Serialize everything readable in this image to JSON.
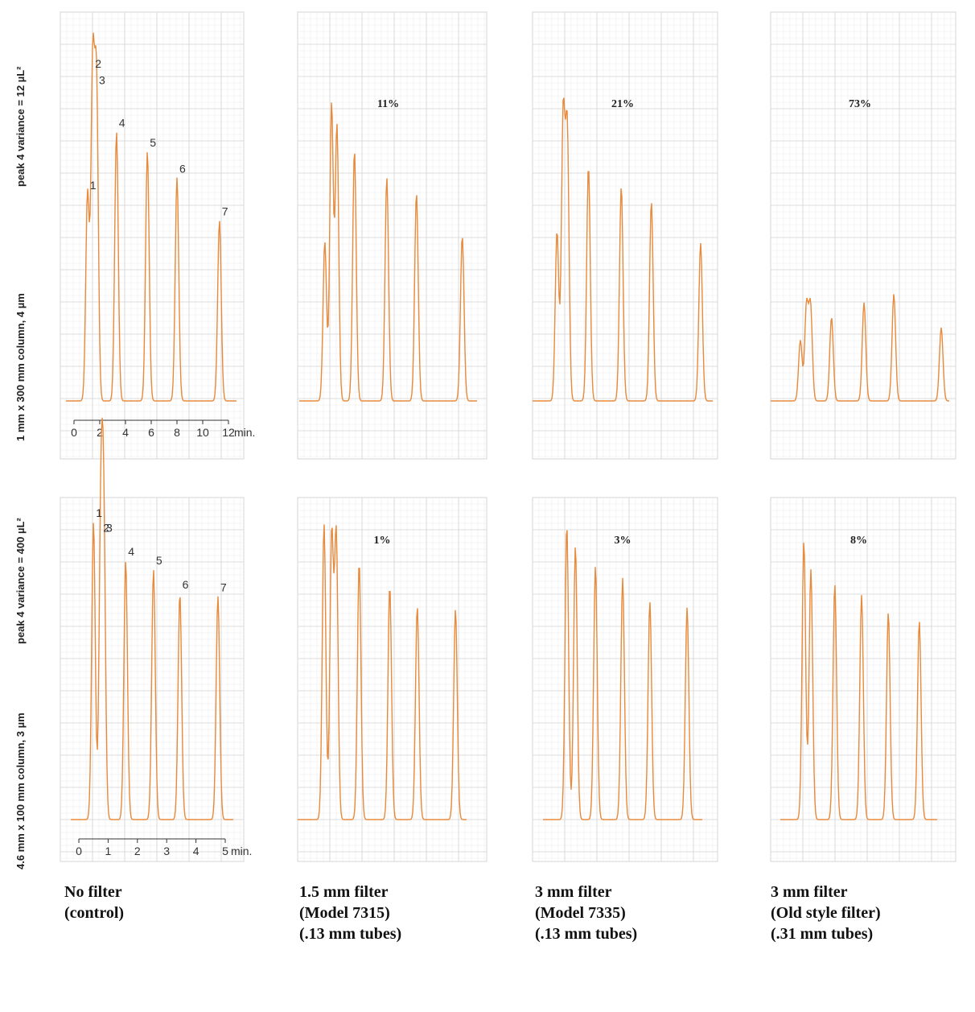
{
  "row_labels": [
    {
      "line1": "peak 4 variance = 12 µL²",
      "line2": "1 mm x 300 mm column, 4 µm"
    },
    {
      "line1": "peak 4 variance = 400 µL²",
      "line2": "4.6 mm x 100 mm column, 3 µm"
    }
  ],
  "column_captions": [
    [
      "No filter",
      "(control)"
    ],
    [
      "1.5 mm filter",
      "(Model 7315)",
      "(.13 mm tubes)"
    ],
    [
      "3 mm filter",
      "(Model 7335)",
      "(.13 mm tubes)"
    ],
    [
      "3 mm filter",
      "(Old style filter)",
      "(.31 mm tubes)"
    ]
  ],
  "colors": {
    "trace": "#e88a3c",
    "grid_minor": "#ececec",
    "grid_major": "#d4d4d4",
    "text": "#111111"
  },
  "chart_data": [
    {
      "type": "line",
      "title": "",
      "xlabel": "min.",
      "x_ticks": [
        0,
        2,
        4,
        6,
        8,
        10,
        12
      ],
      "xlim": [
        0,
        12
      ],
      "variance_increase": "",
      "peak_labels": [
        "1",
        "2",
        "3",
        "4",
        "5",
        "6",
        "7"
      ],
      "peaks": [
        {
          "x": 1.05,
          "height": 0.63
        },
        {
          "x": 1.45,
          "height": 1.0
        },
        {
          "x": 1.75,
          "height": 0.95
        },
        {
          "x": 3.3,
          "height": 0.82
        },
        {
          "x": 5.7,
          "height": 0.76
        },
        {
          "x": 8.0,
          "height": 0.68
        },
        {
          "x": 11.3,
          "height": 0.55
        }
      ]
    },
    {
      "type": "line",
      "title": "",
      "xlim": [
        0,
        12
      ],
      "variance_increase": "11%",
      "peaks": [
        {
          "x": 1.3,
          "height": 0.52
        },
        {
          "x": 1.8,
          "height": 0.97
        },
        {
          "x": 2.2,
          "height": 0.9
        },
        {
          "x": 3.5,
          "height": 0.82
        },
        {
          "x": 5.9,
          "height": 0.73
        },
        {
          "x": 8.1,
          "height": 0.68
        },
        {
          "x": 11.5,
          "height": 0.54
        }
      ]
    },
    {
      "type": "line",
      "title": "",
      "xlim": [
        0,
        12
      ],
      "variance_increase": "21%",
      "peaks": [
        {
          "x": 1.2,
          "height": 0.57
        },
        {
          "x": 1.65,
          "height": 0.95
        },
        {
          "x": 1.95,
          "height": 0.9
        },
        {
          "x": 3.5,
          "height": 0.79
        },
        {
          "x": 5.9,
          "height": 0.72
        },
        {
          "x": 8.1,
          "height": 0.67
        },
        {
          "x": 11.7,
          "height": 0.53
        }
      ]
    },
    {
      "type": "line",
      "title": "",
      "xlim": [
        0,
        12
      ],
      "variance_increase": "73%",
      "peaks": [
        {
          "x": 1.6,
          "height": 0.29
        },
        {
          "x": 2.05,
          "height": 0.45
        },
        {
          "x": 2.35,
          "height": 0.45
        },
        {
          "x": 3.9,
          "height": 0.4
        },
        {
          "x": 6.3,
          "height": 0.47
        },
        {
          "x": 8.5,
          "height": 0.51
        },
        {
          "x": 12.0,
          "height": 0.35
        }
      ]
    },
    {
      "type": "line",
      "title": "",
      "xlabel": "min.",
      "x_ticks": [
        0,
        1,
        2,
        3,
        4,
        5
      ],
      "xlim": [
        0,
        5
      ],
      "variance_increase": "",
      "peak_labels": [
        "1",
        "2",
        "3",
        "4",
        "5",
        "6",
        "7"
      ],
      "peaks": [
        {
          "x": 0.5,
          "height": 1.0
        },
        {
          "x": 0.75,
          "height": 0.95
        },
        {
          "x": 0.85,
          "height": 0.95
        },
        {
          "x": 1.6,
          "height": 0.87
        },
        {
          "x": 2.55,
          "height": 0.84
        },
        {
          "x": 3.45,
          "height": 0.76
        },
        {
          "x": 4.75,
          "height": 0.75
        }
      ]
    },
    {
      "type": "line",
      "title": "",
      "xlim": [
        0,
        5
      ],
      "variance_increase": "1%",
      "peaks": [
        {
          "x": 0.6,
          "height": 1.0
        },
        {
          "x": 0.85,
          "height": 0.96
        },
        {
          "x": 1.0,
          "height": 0.96
        },
        {
          "x": 1.75,
          "height": 0.87
        },
        {
          "x": 2.75,
          "height": 0.79
        },
        {
          "x": 3.65,
          "height": 0.72
        },
        {
          "x": 4.9,
          "height": 0.71
        }
      ]
    },
    {
      "type": "line",
      "title": "",
      "xlim": [
        0,
        5
      ],
      "variance_increase": "3%",
      "peaks": [
        {
          "x": 0.55,
          "height": 1.0
        },
        {
          "x": 0.85,
          "height": 0.93
        },
        {
          "x": 1.55,
          "height": 0.86
        },
        {
          "x": 2.5,
          "height": 0.82
        },
        {
          "x": 3.45,
          "height": 0.74
        },
        {
          "x": 4.75,
          "height": 0.72
        }
      ]
    },
    {
      "type": "line",
      "title": "",
      "xlim": [
        0,
        5
      ],
      "variance_increase": "8%",
      "peaks": [
        {
          "x": 0.55,
          "height": 0.98
        },
        {
          "x": 0.8,
          "height": 0.88
        },
        {
          "x": 1.65,
          "height": 0.83
        },
        {
          "x": 2.6,
          "height": 0.79
        },
        {
          "x": 3.55,
          "height": 0.73
        },
        {
          "x": 4.65,
          "height": 0.7
        }
      ]
    }
  ]
}
